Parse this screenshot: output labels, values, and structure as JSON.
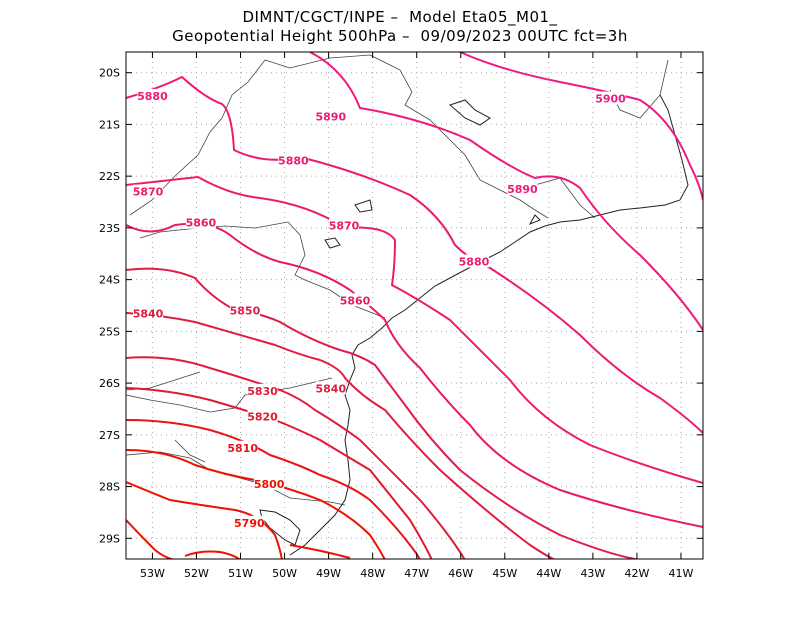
{
  "title": {
    "line1": "DIMNT/CGCT/INPE –  Model Eta05_M01_",
    "line2": "Geopotential Height 500hPa –  09/09/2023 00UTC fct=3h"
  },
  "map": {
    "lon_range": [
      -53.6,
      -40.5
    ],
    "lat_range": [
      -29.4,
      -19.6
    ],
    "lon_ticks": [
      "53W",
      "52W",
      "51W",
      "50W",
      "49W",
      "48W",
      "47W",
      "46W",
      "45W",
      "44W",
      "43W",
      "42W",
      "41W"
    ],
    "lat_ticks": [
      "20S",
      "21S",
      "22S",
      "23S",
      "24S",
      "25S",
      "26S",
      "27S",
      "28S",
      "29S"
    ],
    "grid": true,
    "contour_colors": {
      "5790": "#ee1100",
      "5800": "#ee1100",
      "5810": "#e8141a",
      "5820": "#e21830",
      "5830": "#e01c3c",
      "5840": "#e01c40",
      "5850": "#e01c4c",
      "5860": "#e81c58",
      "5870": "#ee1c66",
      "5880": "#ee1a72",
      "5890": "#ee1a7c",
      "5900": "#ee1a86"
    },
    "contour_labels": [
      {
        "text": "5880",
        "lon": -53.0,
        "lat": -20.45
      },
      {
        "text": "5890",
        "lon": -48.95,
        "lat": -20.85
      },
      {
        "text": "5900",
        "lon": -42.6,
        "lat": -20.5
      },
      {
        "text": "5880",
        "lon": -49.8,
        "lat": -21.7
      },
      {
        "text": "5890",
        "lon": -44.6,
        "lat": -22.25
      },
      {
        "text": "5870",
        "lon": -53.1,
        "lat": -22.3
      },
      {
        "text": "5860",
        "lon": -51.9,
        "lat": -22.9
      },
      {
        "text": "5870",
        "lon": -48.65,
        "lat": -22.95
      },
      {
        "text": "5880",
        "lon": -45.7,
        "lat": -23.65
      },
      {
        "text": "5860",
        "lon": -48.4,
        "lat": -24.4
      },
      {
        "text": "5840",
        "lon": -53.1,
        "lat": -24.65
      },
      {
        "text": "5850",
        "lon": -50.9,
        "lat": -24.6
      },
      {
        "text": "5840",
        "lon": -48.95,
        "lat": -26.1
      },
      {
        "text": "5830",
        "lon": -50.5,
        "lat": -26.15
      },
      {
        "text": "5820",
        "lon": -50.5,
        "lat": -26.65
      },
      {
        "text": "5810",
        "lon": -50.95,
        "lat": -27.25
      },
      {
        "text": "5800",
        "lon": -50.35,
        "lat": -27.95
      },
      {
        "text": "5790",
        "lon": -50.8,
        "lat": -28.7
      }
    ]
  }
}
